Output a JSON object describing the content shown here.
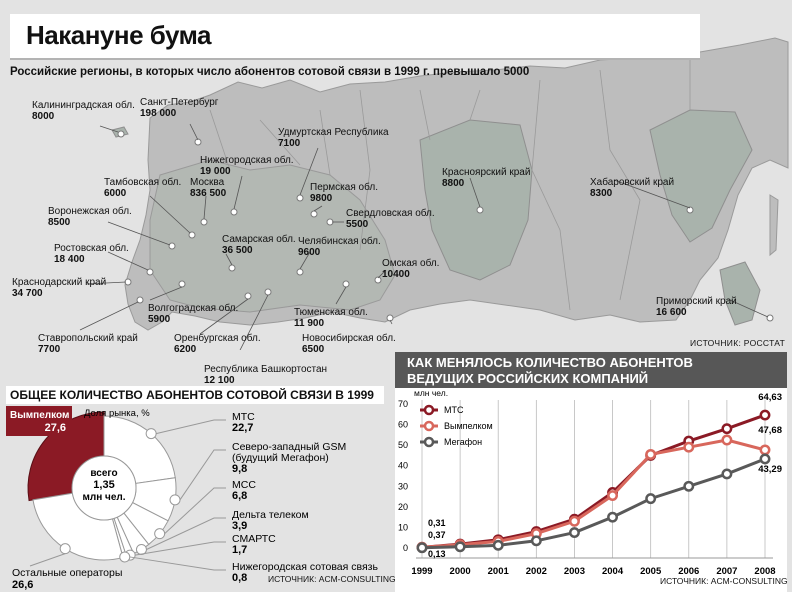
{
  "title": "Накануне бума",
  "subtitle": "Российские регионы, в которых число абонентов сотовой связи в 1999 г. превышало 5000",
  "map_source": "ИСТОЧНИК: РОССТАТ",
  "regions": [
    {
      "name": "Калининградская обл.",
      "value": "8000"
    },
    {
      "name": "Санкт-Петербург",
      "value": "198 000"
    },
    {
      "name": "Удмуртская Республика",
      "value": "7100"
    },
    {
      "name": "Нижегородская обл.",
      "value": "19 000"
    },
    {
      "name": "Тамбовская обл.",
      "value": "6000"
    },
    {
      "name": "Москва",
      "value": "836 500"
    },
    {
      "name": "Пермская обл.",
      "value": "9800"
    },
    {
      "name": "Свердловская обл.",
      "value": "5500"
    },
    {
      "name": "Воронежская обл.",
      "value": "8500"
    },
    {
      "name": "Самарская обл.",
      "value": "36 500"
    },
    {
      "name": "Челябинская обл.",
      "value": "9600"
    },
    {
      "name": "Ростовская обл.",
      "value": "18 400"
    },
    {
      "name": "Омская обл.",
      "value": "10400"
    },
    {
      "name": "Краснодарский край",
      "value": "34 700"
    },
    {
      "name": "Волгоградская обл.",
      "value": "5900"
    },
    {
      "name": "Тюменская обл.",
      "value": "11 900"
    },
    {
      "name": "Ставропольский край",
      "value": "7700"
    },
    {
      "name": "Оренбургская обл.",
      "value": "6200"
    },
    {
      "name": "Новосибирская обл.",
      "value": "6500"
    },
    {
      "name": "Республика Башкортостан",
      "value": "12 100"
    },
    {
      "name": "Красноярский край",
      "value": "8800"
    },
    {
      "name": "Хабаровский край",
      "value": "8300"
    },
    {
      "name": "Приморский край",
      "value": "16 600"
    }
  ],
  "pie": {
    "title": "ОБЩЕЕ КОЛИЧЕСТВО АБОНЕНТОВ СОТОВОЙ СВЯЗИ В 1999 Г.",
    "share_label": "Доля рынка, %",
    "center_lines": [
      "всего",
      "1,35",
      "млн чел."
    ],
    "source": "ИСТОЧНИК: ACM-CONSULTING"
  },
  "line": {
    "title_lines": [
      "КАК МЕНЯЛОСЬ КОЛИЧЕСТВО АБОНЕНТОВ",
      "ВЕДУЩИХ РОССИЙСКИХ КОМПАНИЙ"
    ],
    "unit": "млн чел.",
    "source": "ИСТОЧНИК: ACM-CONSULTING",
    "start_labels": [
      "0,31",
      "0,37",
      "0,13"
    ],
    "end_labels": [
      "64,63",
      "47,68",
      "43,29"
    ]
  },
  "chart_data": [
    {
      "type": "pie",
      "title": "ОБЩЕЕ КОЛИЧЕСТВО АБОНЕНТОВ СОТОВОЙ СВЯЗИ В 1999 Г.",
      "slices": [
        {
          "name": "Вымпелком",
          "label": "27,6",
          "value": 27.6,
          "color": "#8b1a25"
        },
        {
          "name": "МТС",
          "label": "22,7",
          "value": 22.7,
          "color": "#ffffff"
        },
        {
          "name": "Северо-западный GSM (будущий Мегафон)",
          "label": "9,8",
          "value": 9.8,
          "color": "#ffffff"
        },
        {
          "name": "МСС",
          "label": "6,8",
          "value": 6.8,
          "color": "#ffffff"
        },
        {
          "name": "Дельта телеком",
          "label": "3,9",
          "value": 3.9,
          "color": "#ffffff"
        },
        {
          "name": "СМАРТС",
          "label": "1,7",
          "value": 1.7,
          "color": "#ffffff"
        },
        {
          "name": "Нижегородская сотовая связь",
          "label": "0,8",
          "value": 0.8,
          "color": "#ffffff"
        },
        {
          "name": "Остальные операторы",
          "label": "26,6",
          "value": 26.6,
          "color": "#ffffff"
        }
      ]
    },
    {
      "type": "line",
      "title": "КАК МЕНЯЛОСЬ КОЛИЧЕСТВО АБОНЕНТОВ ВЕДУЩИХ РОССИЙСКИХ КОМПАНИЙ",
      "ylabel": "млн чел.",
      "x": [
        "1999",
        "2000",
        "2001",
        "2002",
        "2003",
        "2004",
        "2005",
        "2006",
        "2007",
        "2008"
      ],
      "ylim": [
        0,
        70
      ],
      "yticks": [
        "0",
        "10",
        "20",
        "30",
        "40",
        "50",
        "60",
        "70"
      ],
      "series": [
        {
          "name": "МТС",
          "color": "#8b1a25",
          "values": [
            0.31,
            1.9,
            4.0,
            8.0,
            14.0,
            27.0,
            45.0,
            52.0,
            58.0,
            64.63
          ]
        },
        {
          "name": "Вымпелком",
          "color": "#d8675c",
          "values": [
            0.37,
            1.6,
            3.2,
            7.0,
            13.0,
            25.5,
            45.5,
            49.0,
            52.5,
            47.68
          ]
        },
        {
          "name": "Мегафон",
          "color": "#595959",
          "values": [
            0.13,
            0.6,
            1.3,
            3.5,
            7.5,
            15.0,
            24.0,
            30.0,
            36.0,
            43.29
          ]
        }
      ]
    }
  ]
}
